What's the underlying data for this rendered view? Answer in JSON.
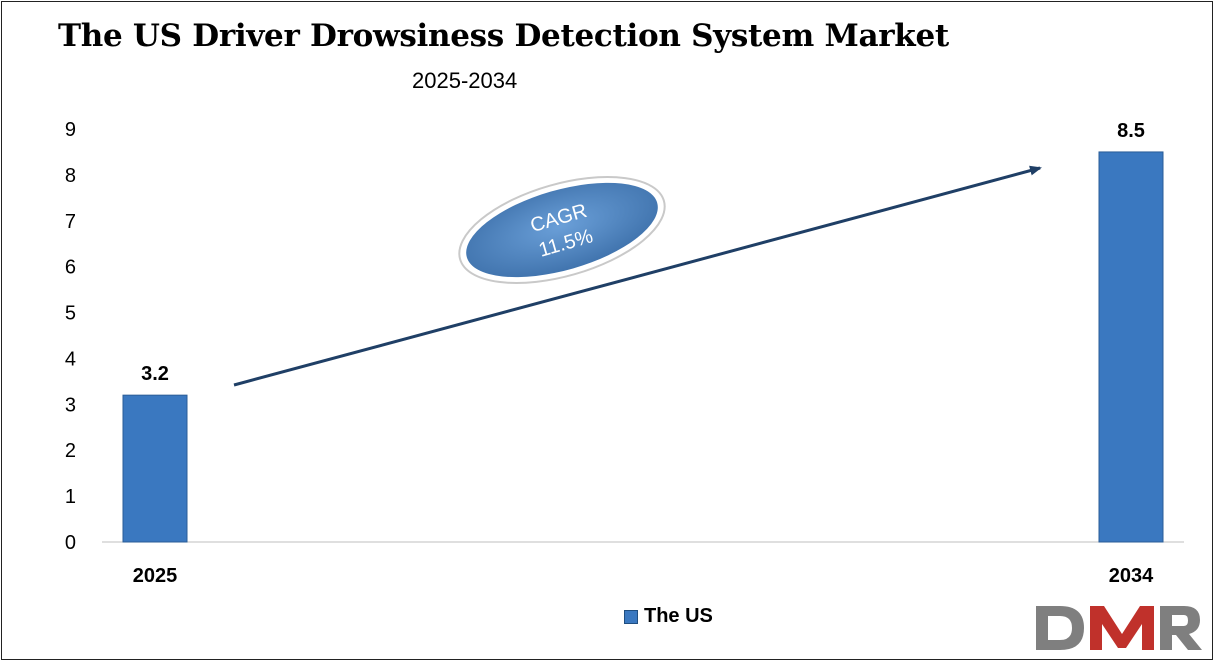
{
  "chart_data": {
    "type": "bar",
    "title": "The US Driver Drowsiness Detection System Market",
    "subtitle": "2025-2034",
    "categories": [
      "2025",
      "2034"
    ],
    "series": [
      {
        "name": "The US",
        "values": [
          3.2,
          8.5
        ],
        "color": "#3a78c0"
      }
    ],
    "data_labels": [
      "3.2",
      "8.5"
    ],
    "y_ticks": [
      "0",
      "1",
      "2",
      "3",
      "4",
      "5",
      "6",
      "7",
      "8",
      "9"
    ],
    "ylim": [
      0,
      9
    ],
    "grid": false,
    "legend": "bottom-center",
    "annotation": {
      "line1": "CAGR",
      "line2": "11.5%"
    }
  },
  "logo_text": "DMR",
  "colors": {
    "bar": "#3a78c0",
    "arrow": "#1f3f66",
    "ellipse": "#4a80bd",
    "logo_gray": "#7f7f7f",
    "logo_red": "#c0312b"
  }
}
